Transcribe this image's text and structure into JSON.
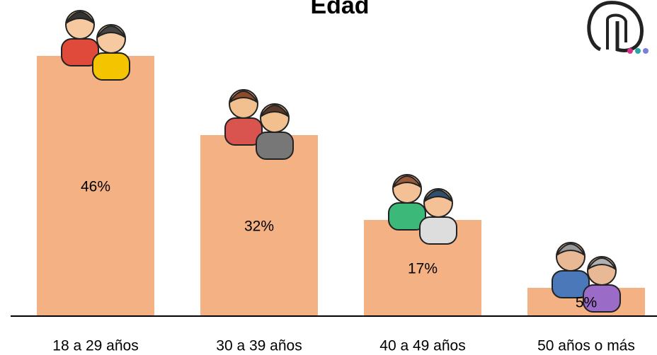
{
  "chart_data": {
    "type": "bar",
    "title": "Edad",
    "categories": [
      "18 a 29 años",
      "30 a 39 años",
      "40 a 49 años",
      "50 años o más"
    ],
    "values": [
      46,
      32,
      17,
      5
    ],
    "value_labels": [
      "46%",
      "32%",
      "17%",
      "5%"
    ],
    "color": "#f4b183",
    "ylim": [
      0,
      55
    ]
  }
}
